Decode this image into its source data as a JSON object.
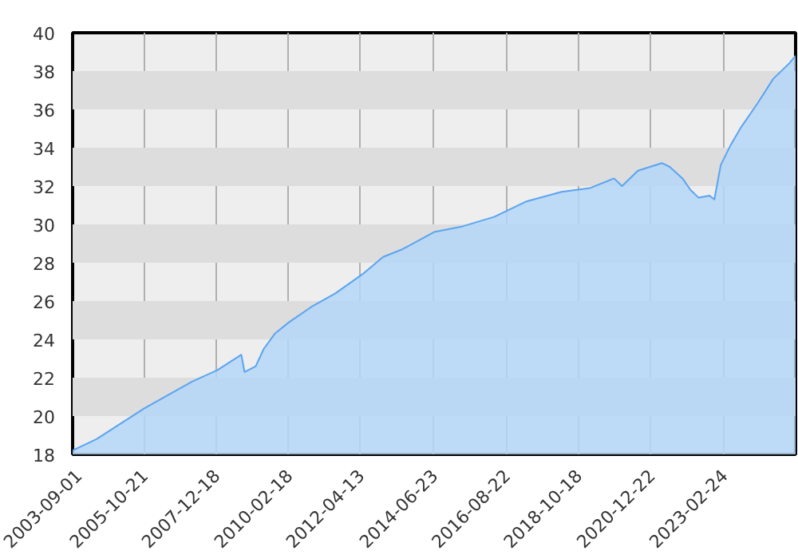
{
  "chart_data": {
    "type": "area",
    "x": [
      "2003-09-01",
      "2004-05-19",
      "2005-02-04",
      "2005-10-23",
      "2006-07-11",
      "2007-03-29",
      "2008-01-01",
      "2008-09-18",
      "2008-10-23",
      "2009-02-22",
      "2009-05-20",
      "2009-09-19",
      "2010-02-22",
      "2010-10-24",
      "2011-07-12",
      "2012-05-03",
      "2012-12-15",
      "2013-07-12",
      "2014-06-25",
      "2015-05-04",
      "2016-04-16",
      "2017-03-30",
      "2018-04-17",
      "2019-02-25",
      "2019-11-13",
      "2020-02-08",
      "2020-07-31",
      "2021-04-18",
      "2021-07-14",
      "2021-11-30",
      "2022-02-25",
      "2022-05-23",
      "2022-09-22",
      "2022-11-13",
      "2023-01-22",
      "2023-05-06",
      "2023-09-05",
      "2024-02-26",
      "2024-08-18",
      "2025-02-08",
      "2025-04-19"
    ],
    "series": [
      {
        "color": "#5aa4f0",
        "values": [
          18.2,
          18.8,
          19.6,
          20.4,
          21.1,
          21.8,
          22.4,
          23.2,
          22.3,
          22.6,
          23.5,
          24.3,
          24.9,
          25.7,
          26.4,
          27.4,
          28.3,
          28.7,
          29.6,
          29.9,
          30.4,
          31.2,
          31.7,
          31.9,
          32.4,
          32.0,
          32.8,
          33.2,
          33.0,
          32.4,
          31.8,
          31.4,
          31.5,
          31.3,
          33.1,
          34.1,
          35.1,
          36.3,
          37.6,
          38.4,
          38.8
        ]
      }
    ],
    "xlim": [
      "2003-09-01",
      "2025-04-19"
    ],
    "xticks": [
      "2003-09-01",
      "2005-10-21",
      "2007-12-18",
      "2010-02-18",
      "2012-04-13",
      "2014-06-23",
      "2016-08-22",
      "2018-10-18",
      "2020-12-22",
      "2023-02-24"
    ],
    "ylim": [
      18,
      40
    ],
    "yticks": [
      18,
      20,
      22,
      24,
      26,
      28,
      30,
      32,
      34,
      36,
      38,
      40
    ],
    "grid": true
  }
}
